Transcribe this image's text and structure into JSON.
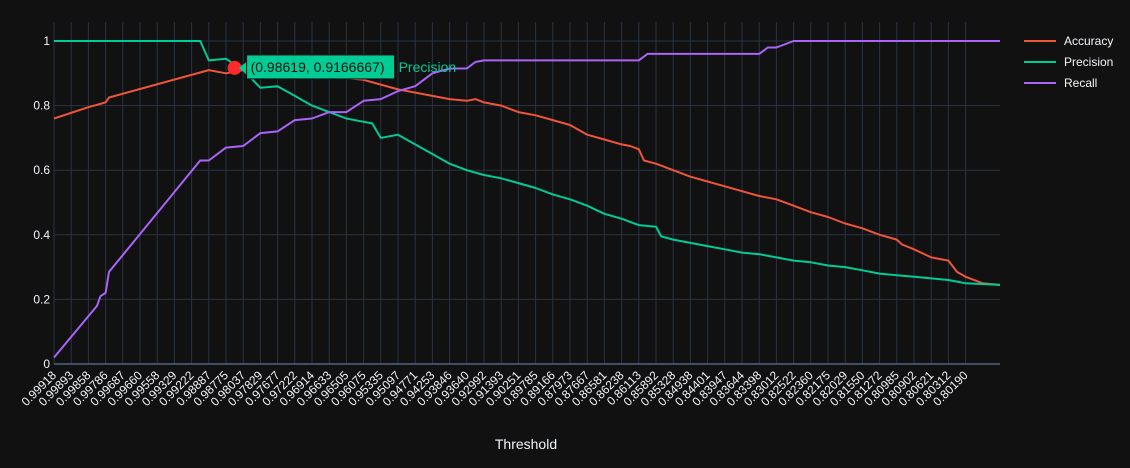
{
  "chart_data": {
    "type": "line",
    "title": "",
    "xlabel": "Threshold",
    "ylabel": "",
    "ylim": [
      0,
      1
    ],
    "yticks": [
      "0",
      "0.2",
      "0.4",
      "0.6",
      "0.8",
      "1"
    ],
    "x_tick_labels": [
      "0.99918",
      "0.99893",
      "0.99858",
      "0.99786",
      "0.99687",
      "0.99660",
      "0.99558",
      "0.99329",
      "0.99222",
      "0.98887",
      "0.98775",
      "0.98037",
      "0.97829",
      "0.97677",
      "0.97222",
      "0.96914",
      "0.96633",
      "0.96505",
      "0.96075",
      "0.95335",
      "0.95097",
      "0.94771",
      "0.94253",
      "0.93846",
      "0.93640",
      "0.92992",
      "0.91393",
      "0.90251",
      "0.89785",
      "0.89166",
      "0.87973",
      "0.87667",
      "0.86581",
      "0.86238",
      "0.86113",
      "0.85892",
      "0.85328",
      "0.84938",
      "0.84401",
      "0.83947",
      "0.83644",
      "0.83398",
      "0.83012",
      "0.82522",
      "0.82360",
      "0.82175",
      "0.82029",
      "0.81550",
      "0.81272",
      "0.80985",
      "0.80902",
      "0.80621",
      "0.80312",
      "0.80190"
    ],
    "grid": true,
    "legend_position": "top-right",
    "series": [
      {
        "name": "Accuracy",
        "color": "#ef553b",
        "points": [
          [
            0,
            0.76
          ],
          [
            2,
            0.795
          ],
          [
            3,
            0.81
          ],
          [
            3.2,
            0.825
          ],
          [
            9,
            0.91
          ],
          [
            10,
            0.9
          ],
          [
            11,
            0.91
          ],
          [
            13,
            0.905
          ],
          [
            14,
            0.9
          ],
          [
            16,
            0.89
          ],
          [
            18,
            0.88
          ],
          [
            19,
            0.865
          ],
          [
            20,
            0.85
          ],
          [
            22,
            0.83
          ],
          [
            23,
            0.82
          ],
          [
            24,
            0.815
          ],
          [
            24.5,
            0.82
          ],
          [
            25,
            0.81
          ],
          [
            26,
            0.8
          ],
          [
            27,
            0.78
          ],
          [
            28,
            0.77
          ],
          [
            29,
            0.755
          ],
          [
            30,
            0.74
          ],
          [
            31,
            0.71
          ],
          [
            32,
            0.695
          ],
          [
            33,
            0.68
          ],
          [
            33.5,
            0.675
          ],
          [
            34,
            0.665
          ],
          [
            34.3,
            0.63
          ],
          [
            35,
            0.62
          ],
          [
            36,
            0.6
          ],
          [
            37,
            0.58
          ],
          [
            38,
            0.565
          ],
          [
            39,
            0.55
          ],
          [
            40,
            0.535
          ],
          [
            41,
            0.52
          ],
          [
            42,
            0.51
          ],
          [
            43,
            0.49
          ],
          [
            44,
            0.47
          ],
          [
            45,
            0.455
          ],
          [
            46,
            0.435
          ],
          [
            47,
            0.42
          ],
          [
            48,
            0.4
          ],
          [
            49,
            0.385
          ],
          [
            49.3,
            0.37
          ],
          [
            50,
            0.355
          ],
          [
            51,
            0.33
          ],
          [
            52,
            0.32
          ],
          [
            52.5,
            0.285
          ],
          [
            53,
            0.27
          ],
          [
            54,
            0.25
          ],
          [
            55,
            0.245
          ]
        ]
      },
      {
        "name": "Precision",
        "color": "#00cc96",
        "points": [
          [
            0,
            1
          ],
          [
            8.5,
            1
          ],
          [
            9,
            0.94
          ],
          [
            10,
            0.945
          ],
          [
            11,
            0.91
          ],
          [
            12,
            0.855
          ],
          [
            13,
            0.86
          ],
          [
            14,
            0.83
          ],
          [
            15,
            0.8
          ],
          [
            16,
            0.78
          ],
          [
            17,
            0.76
          ],
          [
            18,
            0.75
          ],
          [
            18.5,
            0.745
          ],
          [
            19,
            0.7
          ],
          [
            20,
            0.71
          ],
          [
            21,
            0.68
          ],
          [
            22,
            0.65
          ],
          [
            23,
            0.62
          ],
          [
            24,
            0.6
          ],
          [
            25,
            0.585
          ],
          [
            26,
            0.575
          ],
          [
            27,
            0.56
          ],
          [
            28,
            0.545
          ],
          [
            29,
            0.525
          ],
          [
            30,
            0.51
          ],
          [
            31,
            0.49
          ],
          [
            32,
            0.465
          ],
          [
            33,
            0.45
          ],
          [
            34,
            0.43
          ],
          [
            35,
            0.425
          ],
          [
            35.3,
            0.395
          ],
          [
            36,
            0.385
          ],
          [
            37,
            0.375
          ],
          [
            38,
            0.365
          ],
          [
            39,
            0.355
          ],
          [
            40,
            0.345
          ],
          [
            41,
            0.34
          ],
          [
            42,
            0.33
          ],
          [
            43,
            0.32
          ],
          [
            44,
            0.315
          ],
          [
            45,
            0.305
          ],
          [
            46,
            0.3
          ],
          [
            47,
            0.29
          ],
          [
            48,
            0.28
          ],
          [
            49,
            0.275
          ],
          [
            50,
            0.27
          ],
          [
            51,
            0.265
          ],
          [
            52,
            0.26
          ],
          [
            52.5,
            0.255
          ],
          [
            53,
            0.25
          ],
          [
            55,
            0.245
          ]
        ]
      },
      {
        "name": "Recall",
        "color": "#ab63fa",
        "points": [
          [
            0,
            0.02
          ],
          [
            2.5,
            0.18
          ],
          [
            2.7,
            0.21
          ],
          [
            3,
            0.22
          ],
          [
            3.2,
            0.285
          ],
          [
            8.5,
            0.63
          ],
          [
            9,
            0.63
          ],
          [
            10,
            0.67
          ],
          [
            11,
            0.675
          ],
          [
            12,
            0.715
          ],
          [
            13,
            0.72
          ],
          [
            14,
            0.755
          ],
          [
            15,
            0.76
          ],
          [
            16,
            0.78
          ],
          [
            17,
            0.78
          ],
          [
            18,
            0.815
          ],
          [
            19,
            0.82
          ],
          [
            20,
            0.845
          ],
          [
            21,
            0.86
          ],
          [
            22,
            0.9
          ],
          [
            23,
            0.915
          ],
          [
            24,
            0.915
          ],
          [
            24.5,
            0.935
          ],
          [
            25,
            0.94
          ],
          [
            34,
            0.94
          ],
          [
            34.5,
            0.96
          ],
          [
            41,
            0.96
          ],
          [
            41.5,
            0.98
          ],
          [
            42,
            0.98
          ],
          [
            43,
            1
          ],
          [
            55,
            1
          ]
        ]
      }
    ],
    "hover": {
      "series": "Precision",
      "label": "(0.98619, 0.9166667)",
      "series_label": "Precision",
      "x_index": 10.5,
      "y": 0.9166667,
      "marker_color": "#ff2a2a"
    }
  }
}
